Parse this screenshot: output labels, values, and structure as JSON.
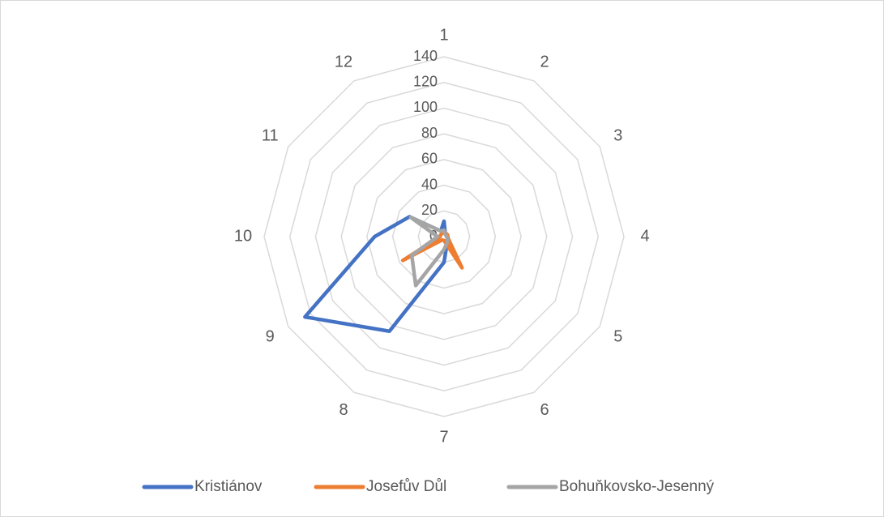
{
  "chart_data": {
    "type": "radar",
    "categories": [
      "1",
      "2",
      "3",
      "4",
      "5",
      "6",
      "7",
      "8",
      "9",
      "10",
      "11",
      "12"
    ],
    "series": [
      {
        "name": "Kristiánov",
        "color": "#4472c4",
        "values": [
          12,
          2,
          2,
          2,
          4,
          5,
          20,
          85,
          125,
          54,
          31,
          5
        ]
      },
      {
        "name": "Josefův Důl",
        "color": "#ed7d31",
        "values": [
          3,
          3,
          3,
          3,
          4,
          28,
          3,
          3,
          37,
          3,
          3,
          3
        ]
      },
      {
        "name": "Bohuňkovsko-Jesenný",
        "color": "#a5a5a5",
        "values": [
          5,
          2,
          2,
          2,
          3,
          5,
          10,
          44,
          29,
          5,
          30,
          5
        ]
      }
    ],
    "ylim": [
      0,
      140
    ],
    "yticks": [
      0,
      20,
      40,
      60,
      80,
      100,
      120,
      140
    ],
    "grid": true,
    "legend": "bottom"
  }
}
